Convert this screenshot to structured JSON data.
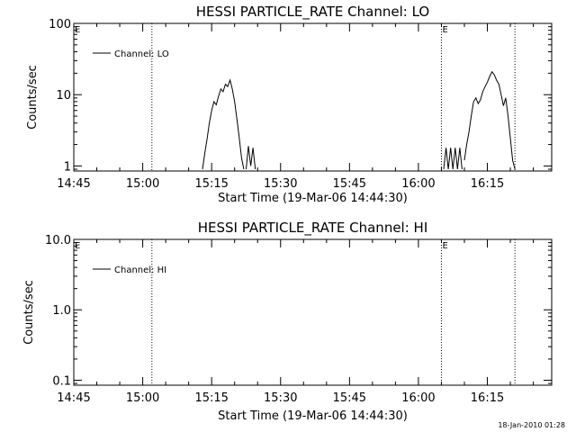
{
  "footer": {
    "date_stamp": "18-Jan-2010 01:28"
  },
  "chart_data": [
    {
      "type": "line",
      "title": "HESSI PARTICLE_RATE Channel: LO",
      "xlabel": "Start Time (19-Mar-06 14:44:30)",
      "ylabel": "Counts/sec",
      "y_scale": "log",
      "xlim": [
        "14:45",
        "16:29"
      ],
      "ylim": [
        0.85,
        100
      ],
      "x_ticks": [
        "14:45",
        "15:00",
        "15:15",
        "15:30",
        "15:45",
        "16:00",
        "16:15"
      ],
      "y_ticks": [
        "1",
        "10",
        "100"
      ],
      "legend": {
        "label": "Channel: LO",
        "position": "top-left"
      },
      "markers": [
        {
          "time": "15:02",
          "label": ""
        },
        {
          "time": "16:05",
          "label": "E"
        },
        {
          "time": "16:21",
          "label": ""
        }
      ],
      "corner_label": "E",
      "series": [
        {
          "name": "Channel: LO",
          "segments": [
            [
              [
                "15:13",
                0.9
              ],
              [
                "15:13.5",
                1.5
              ],
              [
                "15:14",
                2.4
              ],
              [
                "15:14.5",
                4.0
              ],
              [
                "15:15",
                6.0
              ],
              [
                "15:15.5",
                8.0
              ],
              [
                "15:16",
                7.2
              ],
              [
                "15:16.5",
                9.5
              ],
              [
                "15:17",
                12.0
              ],
              [
                "15:17.5",
                11.0
              ],
              [
                "15:18",
                14.0
              ],
              [
                "15:18.5",
                13.0
              ],
              [
                "15:19",
                16.0
              ],
              [
                "15:19.5",
                12.0
              ],
              [
                "15:20",
                8.0
              ],
              [
                "15:20.5",
                4.5
              ],
              [
                "15:21",
                2.5
              ],
              [
                "15:21.5",
                1.3
              ],
              [
                "15:22",
                0.9
              ]
            ],
            [
              [
                "15:22.5",
                0.9
              ],
              [
                "15:23",
                1.9
              ],
              [
                "15:23.5",
                1.0
              ],
              [
                "15:24",
                1.8
              ],
              [
                "15:24.5",
                0.9
              ]
            ],
            [
              [
                "16:05.5",
                0.9
              ],
              [
                "16:06",
                1.8
              ],
              [
                "16:06.5",
                0.9
              ],
              [
                "16:07",
                1.8
              ],
              [
                "16:07.5",
                0.9
              ],
              [
                "16:08",
                1.8
              ],
              [
                "16:08.5",
                0.9
              ],
              [
                "16:09",
                1.8
              ],
              [
                "16:09.5",
                0.9
              ]
            ],
            [
              [
                "16:10",
                1.2
              ],
              [
                "16:10.5",
                2.0
              ],
              [
                "16:11",
                3.0
              ],
              [
                "16:11.5",
                5.0
              ],
              [
                "16:12",
                8.0
              ],
              [
                "16:12.5",
                9.0
              ],
              [
                "16:13",
                7.5
              ],
              [
                "16:13.5",
                8.5
              ],
              [
                "16:14",
                11.0
              ],
              [
                "16:14.5",
                13.0
              ],
              [
                "16:15",
                15.0
              ],
              [
                "16:15.5",
                18.0
              ],
              [
                "16:16",
                21.0
              ],
              [
                "16:16.5",
                19.0
              ],
              [
                "16:17",
                16.0
              ],
              [
                "16:17.5",
                14.0
              ],
              [
                "16:18",
                10.0
              ],
              [
                "16:18.5",
                7.0
              ],
              [
                "16:19",
                9.0
              ],
              [
                "16:19.5",
                5.0
              ],
              [
                "16:20",
                2.5
              ],
              [
                "16:20.5",
                1.2
              ],
              [
                "16:21",
                0.9
              ]
            ]
          ]
        }
      ]
    },
    {
      "type": "line",
      "title": "HESSI PARTICLE_RATE Channel: HI",
      "xlabel": "Start Time (19-Mar-06 14:44:30)",
      "ylabel": "Counts/sec",
      "y_scale": "log",
      "xlim": [
        "14:45",
        "16:29"
      ],
      "ylim": [
        0.085,
        10
      ],
      "x_ticks": [
        "14:45",
        "15:00",
        "15:15",
        "15:30",
        "15:45",
        "16:00",
        "16:15"
      ],
      "y_ticks": [
        "0.1",
        "1.0",
        "10.0"
      ],
      "legend": {
        "label": "Channel: HI",
        "position": "top-left"
      },
      "markers": [
        {
          "time": "15:02",
          "label": ""
        },
        {
          "time": "16:05",
          "label": "E"
        },
        {
          "time": "16:21",
          "label": ""
        }
      ],
      "corner_label": "E",
      "series": [
        {
          "name": "Channel: HI",
          "segments": []
        }
      ]
    }
  ]
}
